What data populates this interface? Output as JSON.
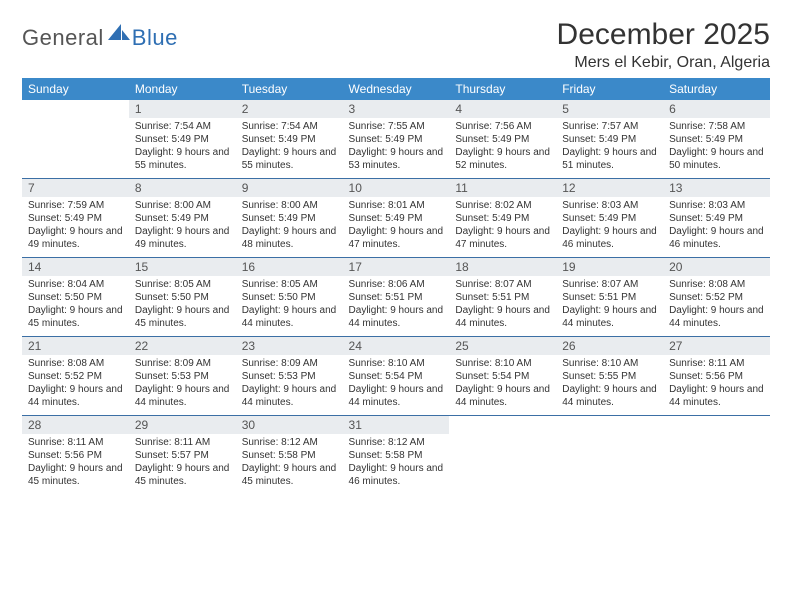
{
  "brand": {
    "part1": "General",
    "part2": "Blue"
  },
  "title": "December 2025",
  "location": "Mers el Kebir, Oran, Algeria",
  "colors": {
    "header_bg": "#3b89c9",
    "header_fg": "#ffffff",
    "daynum_bg": "#e9ecef",
    "row_border": "#3b6fa5",
    "brand_gray": "#555555",
    "brand_blue": "#2f6fb3"
  },
  "weekdays": [
    "Sunday",
    "Monday",
    "Tuesday",
    "Wednesday",
    "Thursday",
    "Friday",
    "Saturday"
  ],
  "start_offset": 1,
  "days": [
    {
      "n": 1,
      "sunrise": "7:54 AM",
      "sunset": "5:49 PM",
      "daylight": "9 hours and 55 minutes."
    },
    {
      "n": 2,
      "sunrise": "7:54 AM",
      "sunset": "5:49 PM",
      "daylight": "9 hours and 55 minutes."
    },
    {
      "n": 3,
      "sunrise": "7:55 AM",
      "sunset": "5:49 PM",
      "daylight": "9 hours and 53 minutes."
    },
    {
      "n": 4,
      "sunrise": "7:56 AM",
      "sunset": "5:49 PM",
      "daylight": "9 hours and 52 minutes."
    },
    {
      "n": 5,
      "sunrise": "7:57 AM",
      "sunset": "5:49 PM",
      "daylight": "9 hours and 51 minutes."
    },
    {
      "n": 6,
      "sunrise": "7:58 AM",
      "sunset": "5:49 PM",
      "daylight": "9 hours and 50 minutes."
    },
    {
      "n": 7,
      "sunrise": "7:59 AM",
      "sunset": "5:49 PM",
      "daylight": "9 hours and 49 minutes."
    },
    {
      "n": 8,
      "sunrise": "8:00 AM",
      "sunset": "5:49 PM",
      "daylight": "9 hours and 49 minutes."
    },
    {
      "n": 9,
      "sunrise": "8:00 AM",
      "sunset": "5:49 PM",
      "daylight": "9 hours and 48 minutes."
    },
    {
      "n": 10,
      "sunrise": "8:01 AM",
      "sunset": "5:49 PM",
      "daylight": "9 hours and 47 minutes."
    },
    {
      "n": 11,
      "sunrise": "8:02 AM",
      "sunset": "5:49 PM",
      "daylight": "9 hours and 47 minutes."
    },
    {
      "n": 12,
      "sunrise": "8:03 AM",
      "sunset": "5:49 PM",
      "daylight": "9 hours and 46 minutes."
    },
    {
      "n": 13,
      "sunrise": "8:03 AM",
      "sunset": "5:49 PM",
      "daylight": "9 hours and 46 minutes."
    },
    {
      "n": 14,
      "sunrise": "8:04 AM",
      "sunset": "5:50 PM",
      "daylight": "9 hours and 45 minutes."
    },
    {
      "n": 15,
      "sunrise": "8:05 AM",
      "sunset": "5:50 PM",
      "daylight": "9 hours and 45 minutes."
    },
    {
      "n": 16,
      "sunrise": "8:05 AM",
      "sunset": "5:50 PM",
      "daylight": "9 hours and 44 minutes."
    },
    {
      "n": 17,
      "sunrise": "8:06 AM",
      "sunset": "5:51 PM",
      "daylight": "9 hours and 44 minutes."
    },
    {
      "n": 18,
      "sunrise": "8:07 AM",
      "sunset": "5:51 PM",
      "daylight": "9 hours and 44 minutes."
    },
    {
      "n": 19,
      "sunrise": "8:07 AM",
      "sunset": "5:51 PM",
      "daylight": "9 hours and 44 minutes."
    },
    {
      "n": 20,
      "sunrise": "8:08 AM",
      "sunset": "5:52 PM",
      "daylight": "9 hours and 44 minutes."
    },
    {
      "n": 21,
      "sunrise": "8:08 AM",
      "sunset": "5:52 PM",
      "daylight": "9 hours and 44 minutes."
    },
    {
      "n": 22,
      "sunrise": "8:09 AM",
      "sunset": "5:53 PM",
      "daylight": "9 hours and 44 minutes."
    },
    {
      "n": 23,
      "sunrise": "8:09 AM",
      "sunset": "5:53 PM",
      "daylight": "9 hours and 44 minutes."
    },
    {
      "n": 24,
      "sunrise": "8:10 AM",
      "sunset": "5:54 PM",
      "daylight": "9 hours and 44 minutes."
    },
    {
      "n": 25,
      "sunrise": "8:10 AM",
      "sunset": "5:54 PM",
      "daylight": "9 hours and 44 minutes."
    },
    {
      "n": 26,
      "sunrise": "8:10 AM",
      "sunset": "5:55 PM",
      "daylight": "9 hours and 44 minutes."
    },
    {
      "n": 27,
      "sunrise": "8:11 AM",
      "sunset": "5:56 PM",
      "daylight": "9 hours and 44 minutes."
    },
    {
      "n": 28,
      "sunrise": "8:11 AM",
      "sunset": "5:56 PM",
      "daylight": "9 hours and 45 minutes."
    },
    {
      "n": 29,
      "sunrise": "8:11 AM",
      "sunset": "5:57 PM",
      "daylight": "9 hours and 45 minutes."
    },
    {
      "n": 30,
      "sunrise": "8:12 AM",
      "sunset": "5:58 PM",
      "daylight": "9 hours and 45 minutes."
    },
    {
      "n": 31,
      "sunrise": "8:12 AM",
      "sunset": "5:58 PM",
      "daylight": "9 hours and 46 minutes."
    }
  ],
  "labels": {
    "sunrise": "Sunrise:",
    "sunset": "Sunset:",
    "daylight": "Daylight:"
  }
}
